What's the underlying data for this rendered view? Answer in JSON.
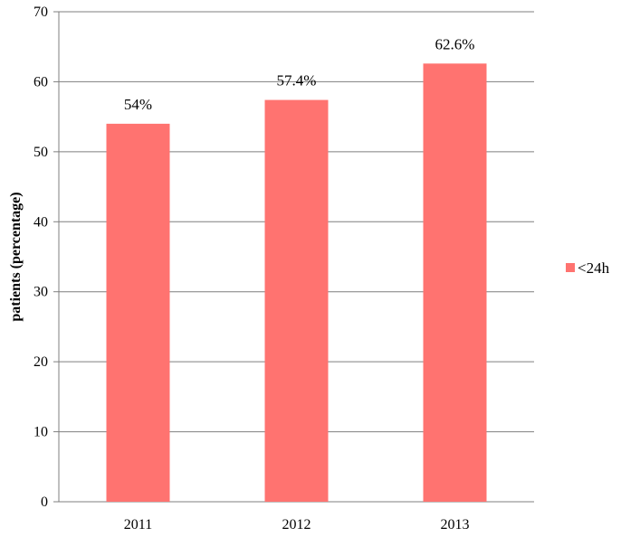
{
  "chart_data": {
    "type": "bar",
    "categories": [
      "2011",
      "2012",
      "2013"
    ],
    "series": [
      {
        "name": "<24h",
        "values": [
          54,
          57.4,
          62.6
        ],
        "color": "#ff7370"
      }
    ],
    "data_labels": [
      "54%",
      "57.4%",
      "62.6%"
    ],
    "title": "",
    "xlabel": "",
    "ylabel": "patients (percentage)",
    "ylim": [
      0,
      70
    ],
    "yticks": [
      0,
      10,
      20,
      30,
      40,
      50,
      60,
      70
    ],
    "grid": "horizontal",
    "legend_position": "right",
    "gridline_color": "#7f7f7f"
  }
}
